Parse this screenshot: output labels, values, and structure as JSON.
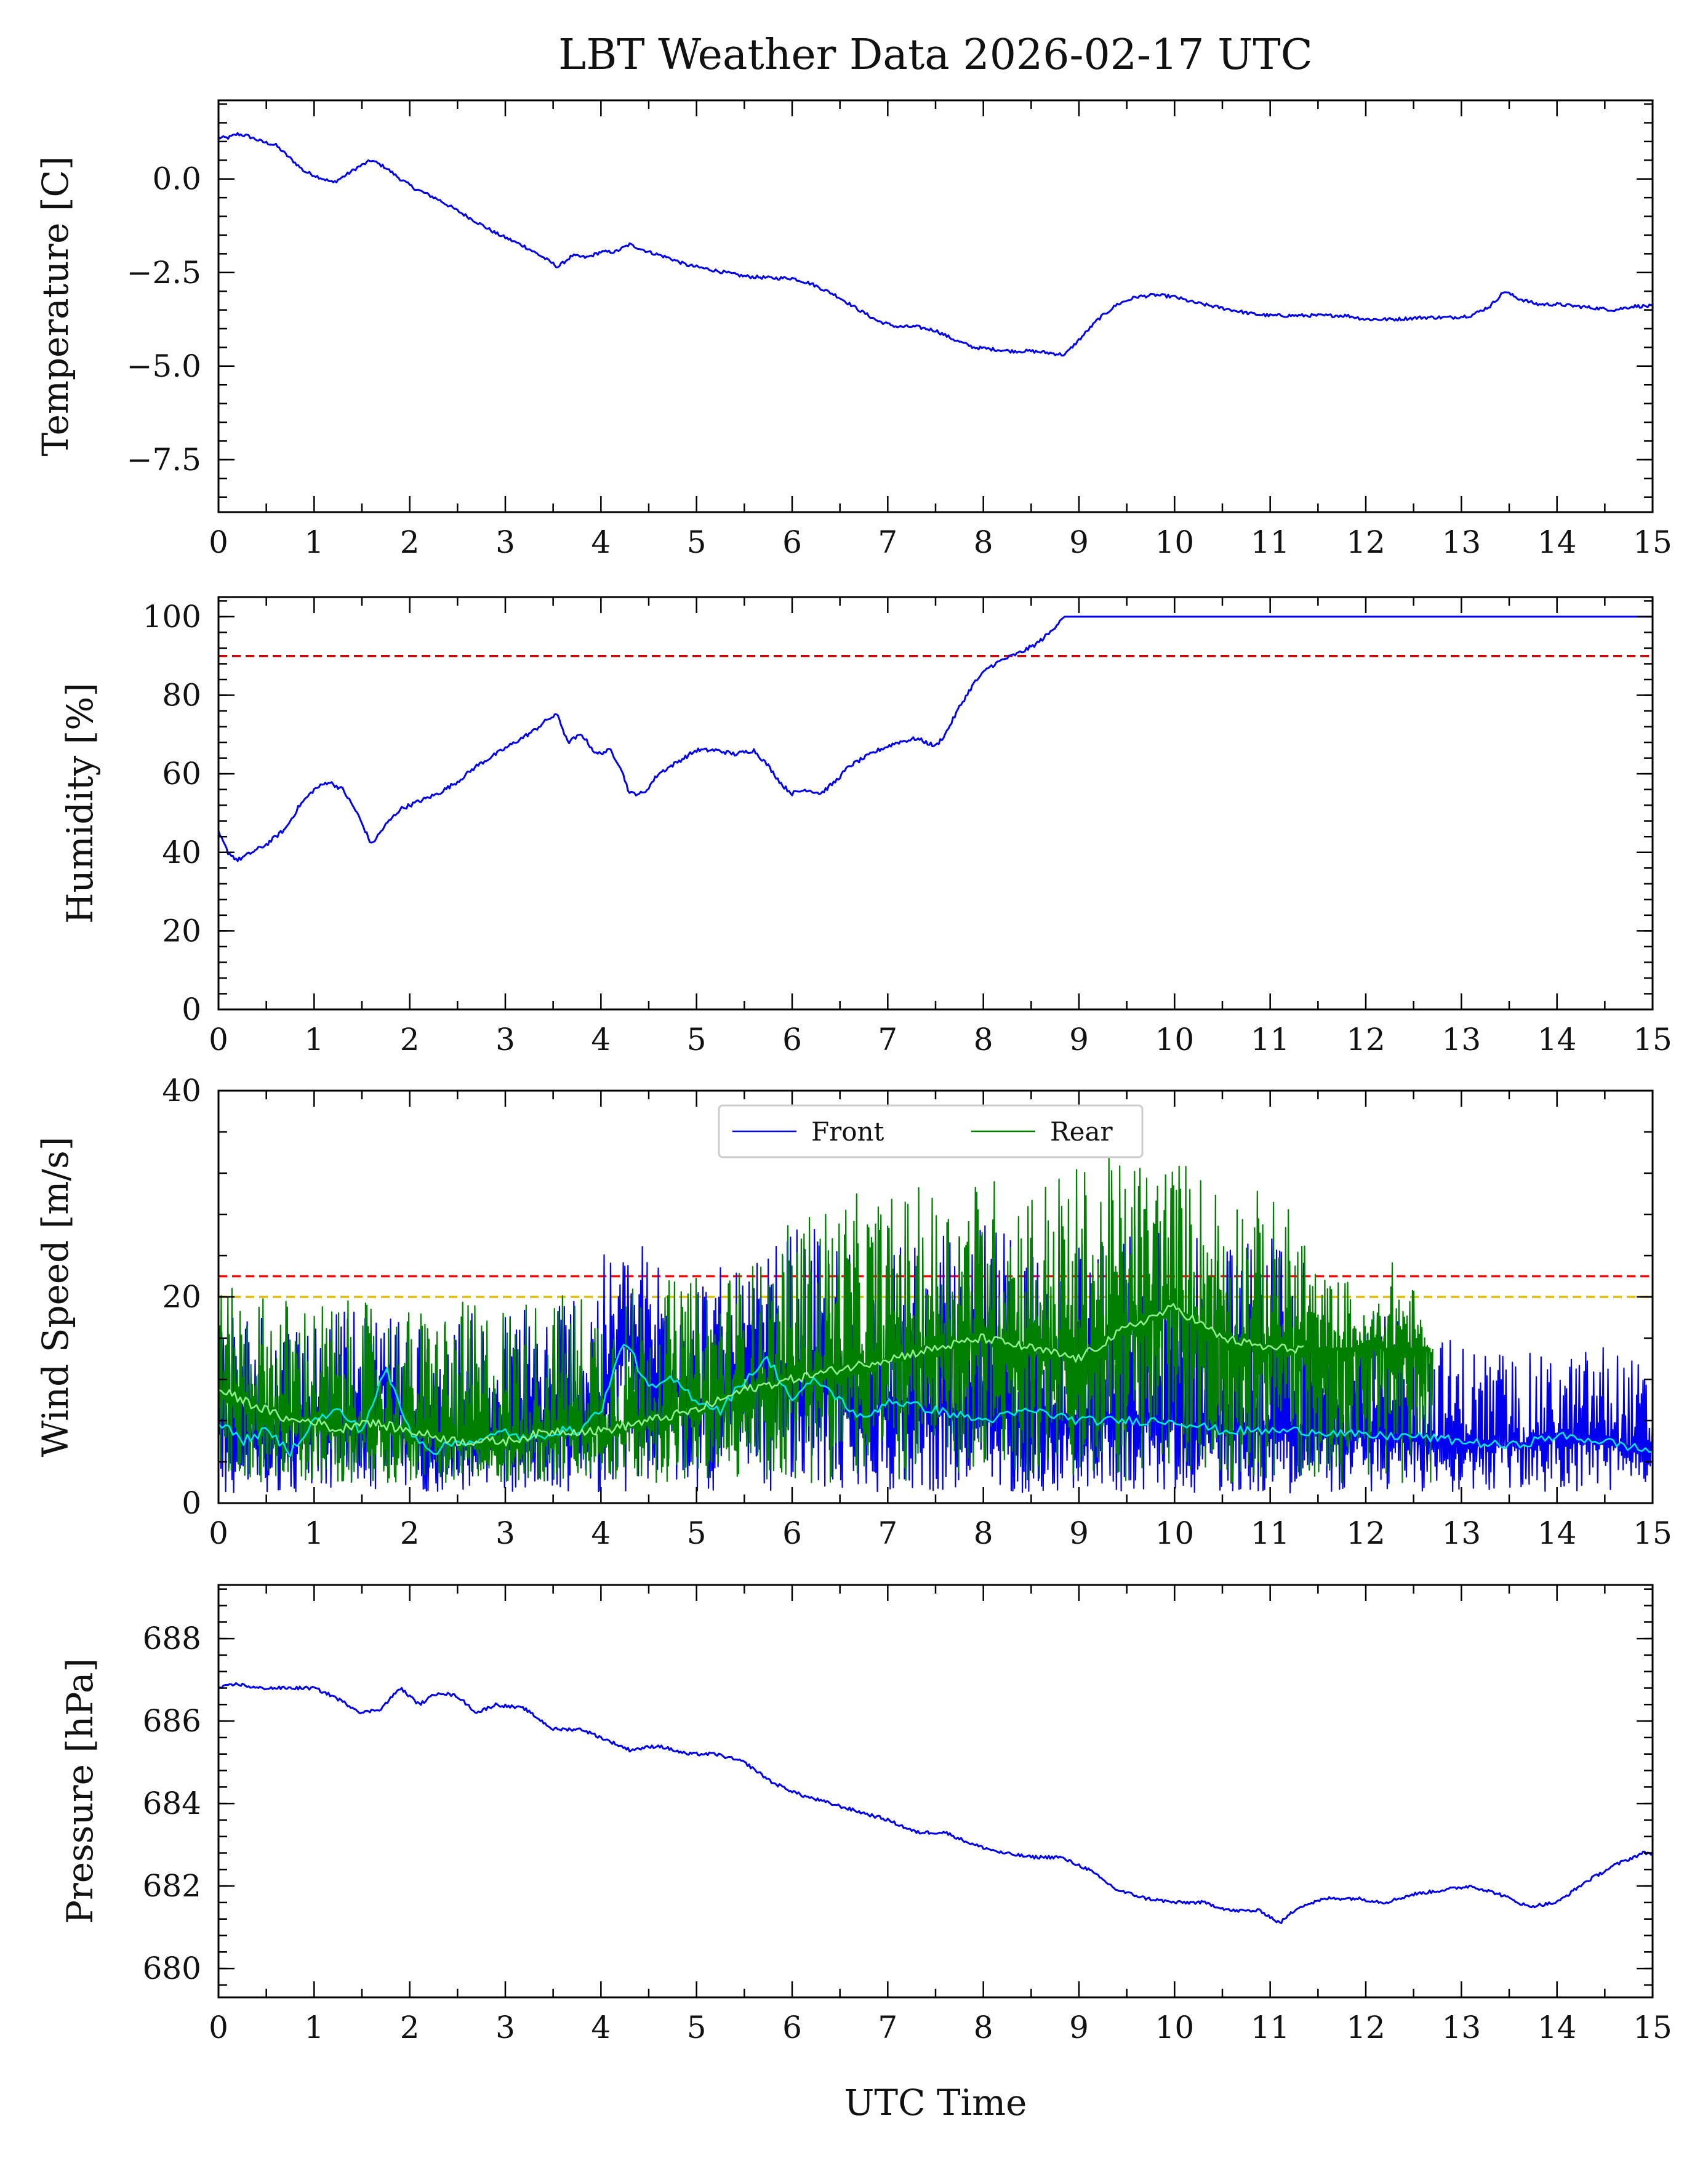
{
  "figure": {
    "title": "LBT Weather Data 2026-02-17 UTC",
    "xlabel": "UTC Time"
  },
  "chart_data": [
    {
      "type": "line",
      "name": "temperature",
      "ylabel": "Temperature [C]",
      "xlim": [
        0,
        15
      ],
      "ylim": [
        -8.9,
        2.1
      ],
      "xticks": [
        0,
        1,
        2,
        3,
        4,
        5,
        6,
        7,
        8,
        9,
        10,
        11,
        12,
        13,
        14,
        15
      ],
      "yticks": [
        0.0,
        -2.5,
        -5.0,
        -7.5
      ],
      "ytick_labels": [
        "0.0",
        "−2.5",
        "−5.0",
        "−7.5"
      ],
      "series": [
        {
          "name": "Temperature",
          "color": "#0000ee",
          "x": [
            0,
            0.1,
            0.2,
            0.3,
            0.45,
            0.6,
            0.75,
            0.9,
            1.05,
            1.2,
            1.3,
            1.45,
            1.6,
            1.75,
            1.9,
            2.05,
            2.3,
            2.6,
            2.9,
            3.2,
            3.4,
            3.55,
            3.7,
            3.85,
            4.0,
            4.15,
            4.3,
            4.5,
            4.7,
            4.9,
            5.1,
            5.3,
            5.5,
            5.8,
            6.0,
            6.2,
            6.45,
            6.7,
            6.9,
            7.1,
            7.3,
            7.5,
            7.7,
            7.9,
            8.1,
            8.3,
            8.5,
            8.7,
            8.85,
            9.0,
            9.2,
            9.4,
            9.6,
            9.8,
            10.0,
            10.2,
            10.4,
            10.6,
            10.8,
            11.0,
            11.2,
            11.5,
            11.8,
            12.0,
            12.3,
            12.6,
            12.9,
            13.1,
            13.3,
            13.45,
            13.6,
            13.8,
            14.0,
            14.2,
            14.4,
            14.6,
            14.8,
            15.0
          ],
          "y": [
            1.1,
            1.1,
            1.2,
            1.15,
            1.0,
            0.9,
            0.55,
            0.2,
            0.05,
            -0.1,
            0.05,
            0.3,
            0.5,
            0.3,
            0.0,
            -0.25,
            -0.55,
            -1.0,
            -1.45,
            -1.8,
            -2.1,
            -2.35,
            -2.05,
            -2.1,
            -1.95,
            -1.95,
            -1.75,
            -1.95,
            -2.1,
            -2.3,
            -2.4,
            -2.5,
            -2.6,
            -2.65,
            -2.65,
            -2.8,
            -3.1,
            -3.5,
            -3.8,
            -3.95,
            -3.95,
            -4.05,
            -4.3,
            -4.5,
            -4.55,
            -4.6,
            -4.6,
            -4.65,
            -4.7,
            -4.3,
            -3.75,
            -3.35,
            -3.15,
            -3.1,
            -3.15,
            -3.3,
            -3.4,
            -3.5,
            -3.6,
            -3.65,
            -3.65,
            -3.65,
            -3.65,
            -3.75,
            -3.75,
            -3.7,
            -3.7,
            -3.65,
            -3.4,
            -3.0,
            -3.2,
            -3.35,
            -3.35,
            -3.4,
            -3.45,
            -3.5,
            -3.4,
            -3.4
          ]
        }
      ]
    },
    {
      "type": "line",
      "name": "humidity",
      "ylabel": "Humidity [%]",
      "xlim": [
        0,
        15
      ],
      "ylim": [
        0,
        105
      ],
      "xticks": [
        0,
        1,
        2,
        3,
        4,
        5,
        6,
        7,
        8,
        9,
        10,
        11,
        12,
        13,
        14,
        15
      ],
      "yticks": [
        0,
        20,
        40,
        60,
        80,
        100
      ],
      "ytick_labels": [
        "0",
        "20",
        "40",
        "60",
        "80",
        "100"
      ],
      "threshold": {
        "value": 90,
        "color": "#cc0000"
      },
      "series": [
        {
          "name": "Humidity",
          "color": "#0000ee",
          "x": [
            0,
            0.1,
            0.2,
            0.35,
            0.5,
            0.7,
            0.85,
            1.0,
            1.15,
            1.3,
            1.45,
            1.6,
            1.75,
            1.9,
            2.1,
            2.3,
            2.5,
            2.7,
            2.9,
            3.1,
            3.3,
            3.45,
            3.55,
            3.65,
            3.8,
            3.95,
            4.1,
            4.2,
            4.3,
            4.45,
            4.6,
            4.8,
            5.0,
            5.2,
            5.4,
            5.6,
            5.75,
            5.9,
            6.0,
            6.15,
            6.3,
            6.45,
            6.6,
            6.75,
            6.9,
            7.1,
            7.3,
            7.5,
            7.6,
            7.75,
            7.9,
            8.05,
            8.2,
            8.4,
            8.55,
            8.7,
            8.8,
            8.85,
            9.0,
            10.0,
            11.0,
            12.0,
            13.0,
            14.0,
            15.0
          ],
          "y": [
            45,
            40,
            38,
            40,
            42,
            46,
            52,
            56,
            58,
            56,
            50,
            42,
            47,
            51,
            53,
            55,
            58,
            62,
            65,
            68,
            71,
            74,
            75,
            68,
            70,
            65,
            66,
            62,
            55,
            55,
            60,
            63,
            66,
            66,
            65,
            66,
            62,
            57,
            55,
            56,
            55,
            58,
            62,
            64,
            66,
            68,
            69,
            67,
            70,
            77,
            83,
            87,
            89,
            91,
            93,
            96,
            99,
            100,
            100,
            100,
            100,
            100,
            100,
            100,
            100
          ]
        }
      ]
    },
    {
      "type": "line",
      "name": "wind",
      "ylabel": "Wind Speed [m/s]",
      "xlim": [
        0,
        15
      ],
      "ylim": [
        0,
        40
      ],
      "xticks": [
        0,
        1,
        2,
        3,
        4,
        5,
        6,
        7,
        8,
        9,
        10,
        11,
        12,
        13,
        14,
        15
      ],
      "yticks": [
        0,
        20,
        40
      ],
      "ytick_labels": [
        "0",
        "20",
        "40"
      ],
      "thresholds": [
        {
          "value": 22,
          "color": "#ff0000"
        },
        {
          "value": 20,
          "color": "#ddbb00"
        }
      ],
      "legend": {
        "entries": [
          "Front",
          "Rear"
        ],
        "location": "upper center"
      },
      "series": [
        {
          "name": "Front",
          "color": "#0000ee",
          "envelope_x": [
            0,
            1,
            2,
            3,
            4,
            4.5,
            5,
            5.5,
            6,
            6.5,
            7,
            7.5,
            8,
            8.5,
            9,
            9.5,
            10,
            10.5,
            11,
            11.35,
            11.5,
            12,
            12.5,
            13,
            13.5,
            14,
            14.5,
            15
          ],
          "envelope_low": [
            1,
            1,
            1,
            1,
            1,
            1,
            1,
            1,
            1,
            1,
            1,
            1,
            1,
            1,
            1,
            1,
            1,
            1,
            1,
            1,
            1,
            1,
            1,
            1,
            1,
            1,
            1,
            1
          ],
          "envelope_high": [
            20,
            19,
            18,
            19,
            24,
            26,
            24,
            22,
            27,
            26,
            25,
            26,
            27,
            27,
            28,
            28,
            27,
            27,
            26,
            24,
            20,
            19,
            17,
            16,
            15,
            14,
            16,
            13
          ],
          "mean_x": [
            0,
            0.25,
            0.5,
            0.75,
            1.0,
            1.25,
            1.5,
            1.75,
            2.0,
            2.25,
            2.5,
            2.75,
            3.0,
            3.25,
            3.5,
            3.75,
            4.0,
            4.25,
            4.5,
            4.75,
            5.0,
            5.25,
            5.5,
            5.75,
            6.0,
            6.25,
            6.5,
            6.75,
            7.0,
            7.5,
            8.0,
            8.5,
            9.0,
            9.5,
            10.0,
            10.5,
            11.0,
            11.5,
            12.0,
            12.5,
            13.0,
            13.5,
            14.0,
            14.5,
            15.0
          ],
          "mean_y": [
            8,
            6,
            7,
            5,
            8,
            9,
            7,
            13,
            7,
            5,
            6,
            6,
            7,
            6,
            7,
            7,
            9,
            16,
            11,
            12,
            10,
            9,
            12,
            14,
            10,
            12,
            10,
            8,
            10,
            9,
            8,
            9,
            8,
            8,
            8,
            7,
            7,
            7,
            6.5,
            6.5,
            6,
            5.5,
            6.5,
            6,
            5
          ]
        },
        {
          "name": "Rear",
          "color": "#008000",
          "envelope_x": [
            0,
            1,
            2,
            3,
            4,
            5,
            5.8,
            6,
            6.5,
            7,
            7.5,
            8,
            8.5,
            9,
            9.5,
            10,
            10.5,
            11,
            11.35,
            11.5,
            11.8,
            12.0,
            12.3,
            12.5,
            12.7
          ],
          "envelope_low": [
            2,
            2,
            2,
            2,
            2,
            2,
            2,
            2,
            2,
            2,
            2,
            2,
            2,
            2,
            2,
            2,
            2,
            2,
            2,
            2,
            2,
            2,
            2,
            2,
            2
          ],
          "envelope_high": [
            21,
            20,
            19,
            20,
            21,
            22,
            24,
            28,
            30,
            30,
            31,
            32,
            32,
            33,
            34,
            34,
            32,
            30,
            28,
            22,
            22,
            18,
            24,
            21,
            14
          ],
          "mean_x": [
            0,
            0.25,
            0.5,
            0.75,
            1.0,
            1.25,
            1.5,
            2.0,
            2.5,
            3.0,
            3.5,
            4.0,
            4.5,
            5.0,
            5.5,
            6.0,
            6.5,
            7.0,
            7.5,
            8.0,
            8.5,
            9.0,
            9.5,
            10.0,
            10.5,
            11.0,
            11.35
          ],
          "mean_y": [
            11,
            10,
            9,
            8,
            8,
            7,
            8,
            7,
            6,
            6,
            7,
            7,
            8,
            9,
            11,
            12,
            13,
            14,
            15,
            16,
            15,
            14,
            17,
            19,
            16,
            15,
            15
          ]
        }
      ]
    },
    {
      "type": "line",
      "name": "pressure",
      "ylabel": "Pressure [hPa]",
      "xlim": [
        0,
        15
      ],
      "ylim": [
        679.3,
        689.3
      ],
      "xticks": [
        0,
        1,
        2,
        3,
        4,
        5,
        6,
        7,
        8,
        9,
        10,
        11,
        12,
        13,
        14,
        15
      ],
      "yticks": [
        680,
        682,
        684,
        686,
        688
      ],
      "ytick_labels": [
        "680",
        "682",
        "684",
        "686",
        "688"
      ],
      "series": [
        {
          "name": "Pressure",
          "color": "#0000ee",
          "x": [
            0,
            0.2,
            0.4,
            0.7,
            1.0,
            1.2,
            1.5,
            1.7,
            1.9,
            2.1,
            2.3,
            2.5,
            2.7,
            2.9,
            3.2,
            3.5,
            3.8,
            4.1,
            4.3,
            4.6,
            4.9,
            5.2,
            5.5,
            5.8,
            6.1,
            6.4,
            6.7,
            7.0,
            7.3,
            7.6,
            7.9,
            8.2,
            8.5,
            8.8,
            9.1,
            9.4,
            9.7,
            10.0,
            10.3,
            10.6,
            10.9,
            11.1,
            11.3,
            11.6,
            11.9,
            12.2,
            12.5,
            12.8,
            13.1,
            13.4,
            13.7,
            14.0,
            14.3,
            14.6,
            14.9,
            15.0
          ],
          "y": [
            686.8,
            686.9,
            686.8,
            686.8,
            686.8,
            686.6,
            686.2,
            686.3,
            686.8,
            686.4,
            686.7,
            686.6,
            686.2,
            686.4,
            686.3,
            685.8,
            685.8,
            685.5,
            685.3,
            685.4,
            685.2,
            685.2,
            685.0,
            684.5,
            684.2,
            684.0,
            683.8,
            683.6,
            683.3,
            683.3,
            683.0,
            682.8,
            682.7,
            682.7,
            682.4,
            681.9,
            681.7,
            681.6,
            681.6,
            681.4,
            681.4,
            681.1,
            681.5,
            681.7,
            681.7,
            681.6,
            681.8,
            681.9,
            682.0,
            681.8,
            681.5,
            681.6,
            682.1,
            682.5,
            682.8,
            682.8
          ]
        }
      ]
    }
  ]
}
